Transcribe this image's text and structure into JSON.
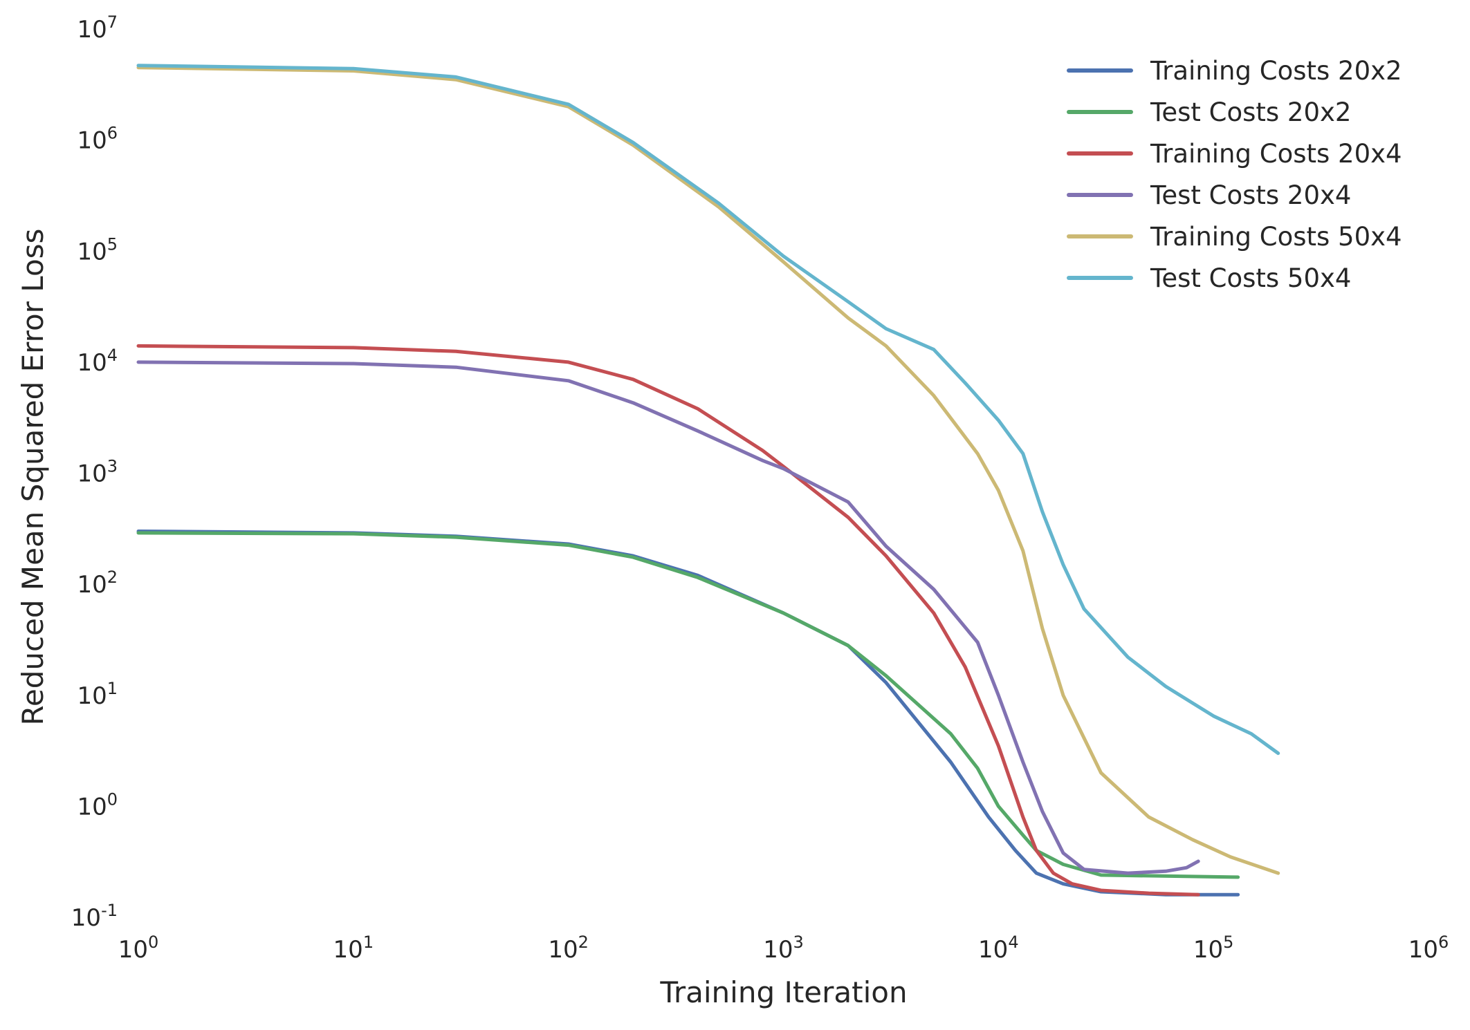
{
  "chart_data": {
    "type": "line",
    "title": "",
    "xlabel": "Training Iteration",
    "ylabel": "Reduced Mean Squared Error Loss",
    "xscale": "log",
    "yscale": "log",
    "xlim": [
      1,
      1000000
    ],
    "ylim": [
      0.1,
      10000000
    ],
    "grid": false,
    "legend_position": "top-right",
    "x_ticks": [
      {
        "value": 1,
        "base": "10",
        "exp": "0"
      },
      {
        "value": 10,
        "base": "10",
        "exp": "1"
      },
      {
        "value": 100,
        "base": "10",
        "exp": "2"
      },
      {
        "value": 1000,
        "base": "10",
        "exp": "3"
      },
      {
        "value": 10000,
        "base": "10",
        "exp": "4"
      },
      {
        "value": 100000,
        "base": "10",
        "exp": "5"
      },
      {
        "value": 1000000,
        "base": "10",
        "exp": "6"
      }
    ],
    "y_ticks": [
      {
        "value": 0.1,
        "base": "10",
        "exp": "-1"
      },
      {
        "value": 1,
        "base": "10",
        "exp": "0"
      },
      {
        "value": 10,
        "base": "10",
        "exp": "1"
      },
      {
        "value": 100,
        "base": "10",
        "exp": "2"
      },
      {
        "value": 1000,
        "base": "10",
        "exp": "3"
      },
      {
        "value": 10000,
        "base": "10",
        "exp": "4"
      },
      {
        "value": 100000,
        "base": "10",
        "exp": "5"
      },
      {
        "value": 1000000,
        "base": "10",
        "exp": "6"
      },
      {
        "value": 10000000,
        "base": "10",
        "exp": "7"
      }
    ],
    "series": [
      {
        "name": "Training Costs 20x2",
        "color": "#4c72b0",
        "points": [
          [
            1,
            300
          ],
          [
            10,
            290
          ],
          [
            30,
            270
          ],
          [
            100,
            230
          ],
          [
            200,
            180
          ],
          [
            400,
            120
          ],
          [
            1000,
            55
          ],
          [
            2000,
            28
          ],
          [
            3000,
            13
          ],
          [
            6000,
            2.5
          ],
          [
            9000,
            0.8
          ],
          [
            12000,
            0.4
          ],
          [
            15000,
            0.25
          ],
          [
            20000,
            0.2
          ],
          [
            30000,
            0.17
          ],
          [
            60000,
            0.16
          ],
          [
            130000,
            0.16
          ]
        ]
      },
      {
        "name": "Test Costs 20x2",
        "color": "#55a868",
        "points": [
          [
            1,
            290
          ],
          [
            10,
            285
          ],
          [
            30,
            265
          ],
          [
            100,
            225
          ],
          [
            200,
            175
          ],
          [
            400,
            115
          ],
          [
            1000,
            55
          ],
          [
            2000,
            28
          ],
          [
            3000,
            15
          ],
          [
            6000,
            4.5
          ],
          [
            8000,
            2.2
          ],
          [
            10000,
            1.0
          ],
          [
            13000,
            0.55
          ],
          [
            15000,
            0.4
          ],
          [
            20000,
            0.3
          ],
          [
            30000,
            0.24
          ],
          [
            130000,
            0.23
          ]
        ]
      },
      {
        "name": "Training Costs 20x4",
        "color": "#c44e52",
        "points": [
          [
            1,
            14000
          ],
          [
            10,
            13500
          ],
          [
            30,
            12500
          ],
          [
            100,
            10000
          ],
          [
            200,
            7000
          ],
          [
            400,
            3800
          ],
          [
            800,
            1600
          ],
          [
            1000,
            1150
          ],
          [
            2000,
            400
          ],
          [
            3000,
            180
          ],
          [
            5000,
            55
          ],
          [
            7000,
            18
          ],
          [
            10000,
            3.5
          ],
          [
            13000,
            0.8
          ],
          [
            15000,
            0.4
          ],
          [
            18000,
            0.25
          ],
          [
            22000,
            0.2
          ],
          [
            30000,
            0.175
          ],
          [
            50000,
            0.165
          ],
          [
            85000,
            0.16
          ]
        ]
      },
      {
        "name": "Test Costs 20x4",
        "color": "#8172b2",
        "points": [
          [
            1,
            10000
          ],
          [
            10,
            9700
          ],
          [
            30,
            9000
          ],
          [
            100,
            6800
          ],
          [
            200,
            4300
          ],
          [
            400,
            2400
          ],
          [
            800,
            1300
          ],
          [
            1000,
            1100
          ],
          [
            2000,
            550
          ],
          [
            3000,
            220
          ],
          [
            5000,
            90
          ],
          [
            8000,
            30
          ],
          [
            10000,
            10
          ],
          [
            13000,
            2.5
          ],
          [
            16000,
            0.9
          ],
          [
            20000,
            0.38
          ],
          [
            25000,
            0.27
          ],
          [
            40000,
            0.25
          ],
          [
            60000,
            0.26
          ],
          [
            75000,
            0.28
          ],
          [
            85000,
            0.32
          ]
        ]
      },
      {
        "name": "Training Costs 50x4",
        "color": "#ccb974",
        "points": [
          [
            1,
            4500000
          ],
          [
            10,
            4200000
          ],
          [
            30,
            3500000
          ],
          [
            100,
            2000000
          ],
          [
            200,
            900000
          ],
          [
            500,
            250000
          ],
          [
            1000,
            80000
          ],
          [
            2000,
            25000
          ],
          [
            3000,
            14000
          ],
          [
            5000,
            5000
          ],
          [
            8000,
            1500
          ],
          [
            10000,
            700
          ],
          [
            13000,
            200
          ],
          [
            16000,
            40
          ],
          [
            20000,
            10
          ],
          [
            30000,
            2
          ],
          [
            50000,
            0.8
          ],
          [
            80000,
            0.5
          ],
          [
            120000,
            0.35
          ],
          [
            200000,
            0.25
          ]
        ]
      },
      {
        "name": "Test Costs 50x4",
        "color": "#64b5cd",
        "points": [
          [
            1,
            4700000
          ],
          [
            10,
            4400000
          ],
          [
            30,
            3700000
          ],
          [
            100,
            2100000
          ],
          [
            200,
            950000
          ],
          [
            500,
            270000
          ],
          [
            1000,
            90000
          ],
          [
            2000,
            35000
          ],
          [
            3000,
            20000
          ],
          [
            5000,
            13000
          ],
          [
            7000,
            6500
          ],
          [
            10000,
            3000
          ],
          [
            13000,
            1500
          ],
          [
            16000,
            450
          ],
          [
            20000,
            150
          ],
          [
            25000,
            60
          ],
          [
            40000,
            22
          ],
          [
            60000,
            12
          ],
          [
            100000,
            6.5
          ],
          [
            150000,
            4.5
          ],
          [
            200000,
            3
          ]
        ]
      }
    ]
  }
}
